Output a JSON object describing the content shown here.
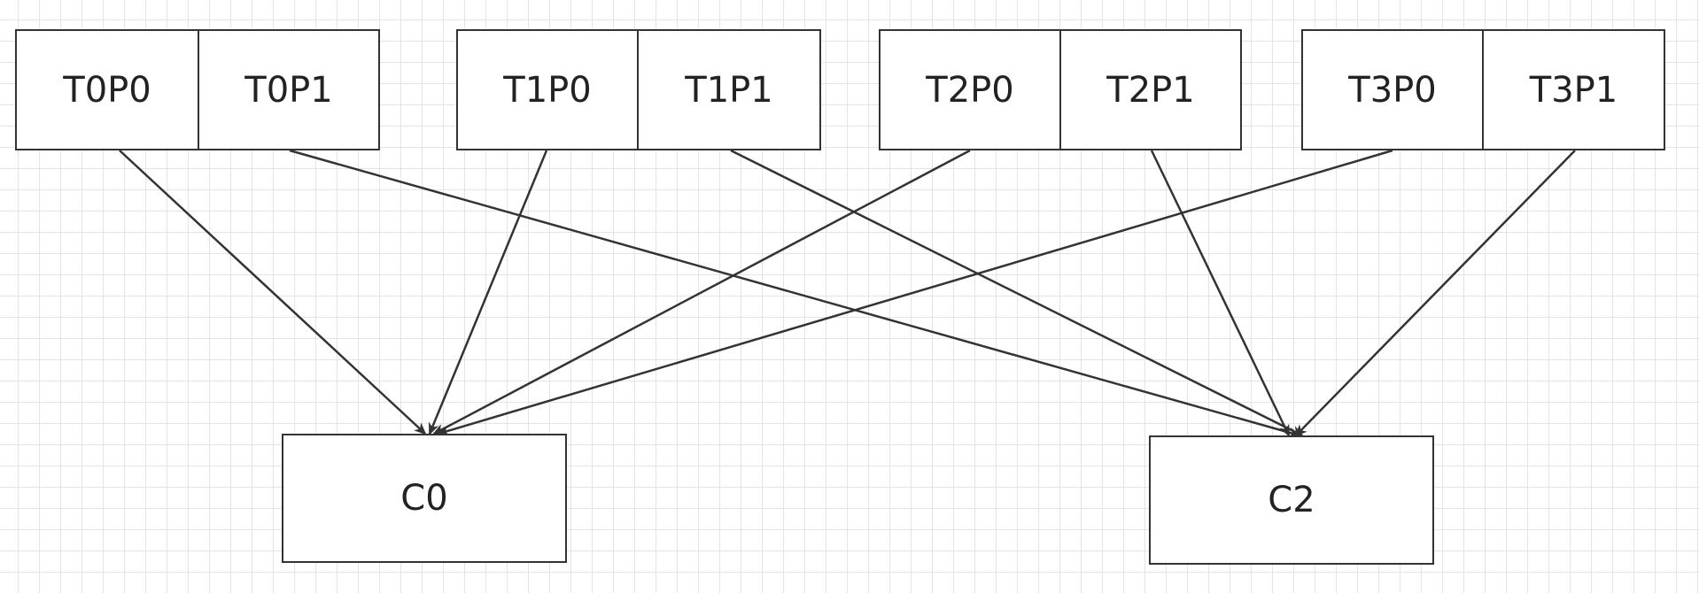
{
  "diagram": {
    "colors": {
      "stroke": "#333333",
      "fill": "#ffffff",
      "grid": "#e4e4e4",
      "text": "#222222"
    },
    "partitions": [
      {
        "id": "t0p0",
        "label": "T0P0"
      },
      {
        "id": "t0p1",
        "label": "T0P1"
      },
      {
        "id": "t1p0",
        "label": "T1P0"
      },
      {
        "id": "t1p1",
        "label": "T1P1"
      },
      {
        "id": "t2p0",
        "label": "T2P0"
      },
      {
        "id": "t2p1",
        "label": "T2P1"
      },
      {
        "id": "t3p0",
        "label": "T3P0"
      },
      {
        "id": "t3p1",
        "label": "T3P1"
      }
    ],
    "consumers": [
      {
        "id": "c0",
        "label": "C0"
      },
      {
        "id": "c2",
        "label": "C2"
      }
    ],
    "edges": [
      {
        "from": "T0P0",
        "to": "C0"
      },
      {
        "from": "T0P1",
        "to": "C2"
      },
      {
        "from": "T1P0",
        "to": "C0"
      },
      {
        "from": "T1P1",
        "to": "C2"
      },
      {
        "from": "T2P0",
        "to": "C0"
      },
      {
        "from": "T2P1",
        "to": "C2"
      },
      {
        "from": "T3P0",
        "to": "C0"
      },
      {
        "from": "T3P1",
        "to": "C2"
      }
    ]
  }
}
